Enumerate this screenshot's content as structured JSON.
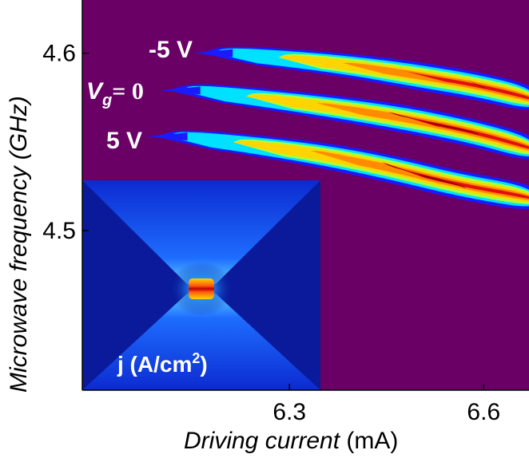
{
  "chart_data": {
    "type": "heatmap",
    "xlabel_italic": "Driving current",
    "xlabel_unit": " (mA)",
    "ylabel": "Microwave frequency (GHz)",
    "x_ticks": [
      6.3,
      6.6
    ],
    "x_tick_labels": [
      "6.3",
      "6.6"
    ],
    "y_ticks": [
      4.5,
      4.6
    ],
    "y_tick_labels": [
      "4.5",
      "4.6"
    ],
    "xlim": [
      5.98,
      6.67
    ],
    "ylim": [
      4.41,
      4.63
    ],
    "background_color": "#6a0066",
    "series": [
      {
        "name": "-5 V",
        "points": [
          {
            "x": 6.2,
            "y": 4.6,
            "intensity": 0.25
          },
          {
            "x": 6.3,
            "y": 4.597,
            "intensity": 0.45
          },
          {
            "x": 6.4,
            "y": 4.593,
            "intensity": 0.62
          },
          {
            "x": 6.49,
            "y": 4.588,
            "intensity": 0.8
          },
          {
            "x": 6.59,
            "y": 4.582,
            "intensity": 0.9
          },
          {
            "x": 6.67,
            "y": 4.575,
            "intensity": 0.85
          }
        ]
      },
      {
        "name": "Vg = 0",
        "points": [
          {
            "x": 6.15,
            "y": 4.579,
            "intensity": 0.25
          },
          {
            "x": 6.25,
            "y": 4.575,
            "intensity": 0.45
          },
          {
            "x": 6.36,
            "y": 4.57,
            "intensity": 0.65
          },
          {
            "x": 6.47,
            "y": 4.564,
            "intensity": 0.9
          },
          {
            "x": 6.58,
            "y": 4.556,
            "intensity": 0.95
          },
          {
            "x": 6.67,
            "y": 4.547,
            "intensity": 0.85
          }
        ]
      },
      {
        "name": "5 V",
        "points": [
          {
            "x": 6.13,
            "y": 4.553,
            "intensity": 0.25
          },
          {
            "x": 6.23,
            "y": 4.549,
            "intensity": 0.45
          },
          {
            "x": 6.35,
            "y": 4.543,
            "intensity": 0.7
          },
          {
            "x": 6.46,
            "y": 4.535,
            "intensity": 0.9
          },
          {
            "x": 6.56,
            "y": 4.526,
            "intensity": 0.9
          },
          {
            "x": 6.67,
            "y": 4.519,
            "intensity": 0.8
          }
        ]
      }
    ],
    "curve_labels": [
      "-5 V",
      "V",
      "g",
      "= 0",
      "5 V"
    ],
    "colormap": [
      "#1a1aff",
      "#00e0ff",
      "#a8ff3a",
      "#ffd400",
      "#ff8c00",
      "#e01010",
      "#8b0000"
    ]
  },
  "inset": {
    "label": "j (A/cm",
    "label_sup": "2",
    "label_close": ")",
    "colors": {
      "background": "#0a1a9a",
      "edge": "#1e3cff",
      "glow": "#4db8ff",
      "hot": "#ff2010",
      "warm": "#ffd400"
    }
  }
}
